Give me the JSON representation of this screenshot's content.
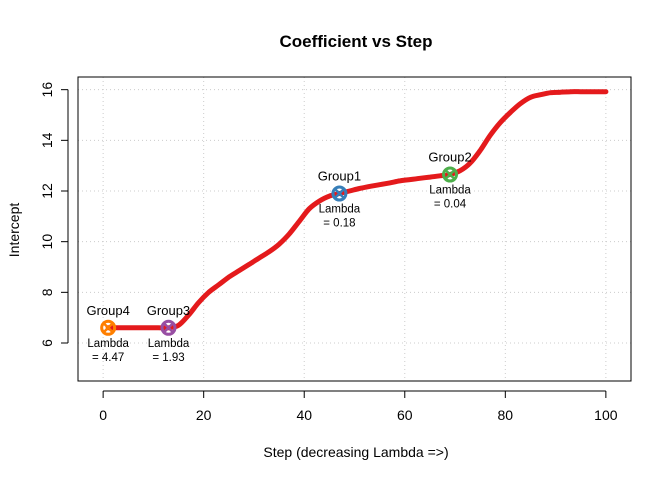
{
  "chart_data": {
    "type": "line",
    "title": "Coefficient vs Step",
    "xlabel": "Step (decreasing Lambda =>)",
    "ylabel": "Intercept",
    "xlim": [
      -5,
      105
    ],
    "ylim": [
      4.5,
      16.5
    ],
    "xticks": [
      0,
      20,
      40,
      60,
      80,
      100
    ],
    "yticks": [
      6,
      8,
      10,
      12,
      14,
      16
    ],
    "grid": true,
    "line_color": "#E41A1C",
    "series": [
      {
        "x": [
          1,
          3,
          5,
          7,
          9,
          11,
          13,
          15,
          17,
          19,
          21,
          23,
          25,
          27,
          29,
          31,
          33,
          35,
          37,
          39,
          41,
          43,
          45,
          47,
          49,
          51,
          53,
          55,
          57,
          59,
          61,
          63,
          65,
          67,
          69,
          71,
          73,
          75,
          77,
          79,
          81,
          83,
          85,
          87,
          89,
          91,
          93,
          95,
          97,
          99,
          100
        ],
        "y": [
          6.6,
          6.6,
          6.6,
          6.6,
          6.6,
          6.6,
          6.6,
          6.7,
          7.1,
          7.6,
          8.0,
          8.3,
          8.6,
          8.85,
          9.1,
          9.35,
          9.6,
          9.9,
          10.3,
          10.8,
          11.3,
          11.6,
          11.8,
          11.9,
          12.0,
          12.1,
          12.18,
          12.25,
          12.32,
          12.4,
          12.45,
          12.5,
          12.55,
          12.6,
          12.65,
          12.8,
          13.1,
          13.6,
          14.2,
          14.7,
          15.1,
          15.45,
          15.7,
          15.8,
          15.88,
          15.9,
          15.92,
          15.92,
          15.92,
          15.92,
          15.92
        ]
      }
    ],
    "markers": [
      {
        "name": "Group1",
        "lambda": "0.18",
        "x": 47,
        "y": 11.9,
        "color": "#377EB8"
      },
      {
        "name": "Group2",
        "lambda": "0.04",
        "x": 69,
        "y": 12.65,
        "color": "#4DAF4A"
      },
      {
        "name": "Group3",
        "lambda": "1.93",
        "x": 13,
        "y": 6.6,
        "color": "#984EA3"
      },
      {
        "name": "Group4",
        "lambda": "4.47",
        "x": 1,
        "y": 6.6,
        "color": "#FF7F00"
      }
    ],
    "lambda_prefix": "Lambda",
    "lambda_eq": "= "
  }
}
